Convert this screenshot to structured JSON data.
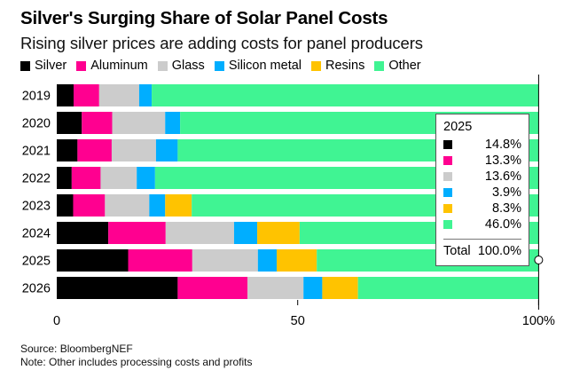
{
  "title": "Silver's Surging Share of Solar Panel Costs",
  "subtitle": "Rising silver prices are adding costs for panel producers",
  "legend": [
    {
      "name": "Silver",
      "color": "#000000"
    },
    {
      "name": "Aluminum",
      "color": "#FF0090"
    },
    {
      "name": "Glass",
      "color": "#CCCCCC"
    },
    {
      "name": "Silicon metal",
      "color": "#00AEFF"
    },
    {
      "name": "Resins",
      "color": "#FFC300"
    },
    {
      "name": "Other",
      "color": "#40F493"
    }
  ],
  "chart_data": {
    "type": "bar",
    "orientation": "horizontal",
    "stacked": true,
    "title": "Silver's Surging Share of Solar Panel Costs",
    "subtitle": "Rising silver prices are adding costs for panel producers",
    "xlabel": "",
    "ylabel": "",
    "xlim": [
      0,
      100
    ],
    "x_ticks": [
      "0",
      "50",
      "100%"
    ],
    "x_tick_values": [
      0,
      50,
      100
    ],
    "legend_position": "top-left",
    "categories": [
      "2019",
      "2020",
      "2021",
      "2022",
      "2023",
      "2024",
      "2025",
      "2026"
    ],
    "series": [
      {
        "name": "Silver",
        "color": "#000000",
        "values": [
          3.5,
          5.2,
          4.3,
          3.1,
          3.4,
          10.7,
          14.8,
          25.1
        ]
      },
      {
        "name": "Aluminum",
        "color": "#FF0090",
        "values": [
          5.3,
          6.3,
          7.1,
          6.0,
          6.6,
          11.9,
          13.3,
          14.5
        ]
      },
      {
        "name": "Glass",
        "color": "#CCCCCC",
        "values": [
          8.3,
          11.0,
          9.2,
          7.5,
          9.2,
          14.2,
          13.6,
          11.6
        ]
      },
      {
        "name": "Silicon metal",
        "color": "#00AEFF",
        "values": [
          2.6,
          3.1,
          4.5,
          3.8,
          3.3,
          4.8,
          3.9,
          3.9
        ]
      },
      {
        "name": "Resins",
        "color": "#FFC300",
        "values": [
          0,
          0,
          0,
          0,
          5.5,
          8.8,
          8.3,
          7.4
        ]
      },
      {
        "name": "Other",
        "color": "#40F493",
        "values": [
          80.3,
          74.4,
          74.9,
          79.6,
          72.0,
          49.6,
          46.0,
          37.5
        ]
      }
    ],
    "hover_tooltip": {
      "category": "2025",
      "values": [
        "14.8%",
        "13.3%",
        "13.6%",
        "3.9%",
        "8.3%",
        "46.0%"
      ],
      "total_label": "Total",
      "total_value": "100.0%"
    }
  },
  "footer": {
    "source": "Source: BloombergNEF",
    "note": "Note: Other includes processing costs and profits"
  }
}
